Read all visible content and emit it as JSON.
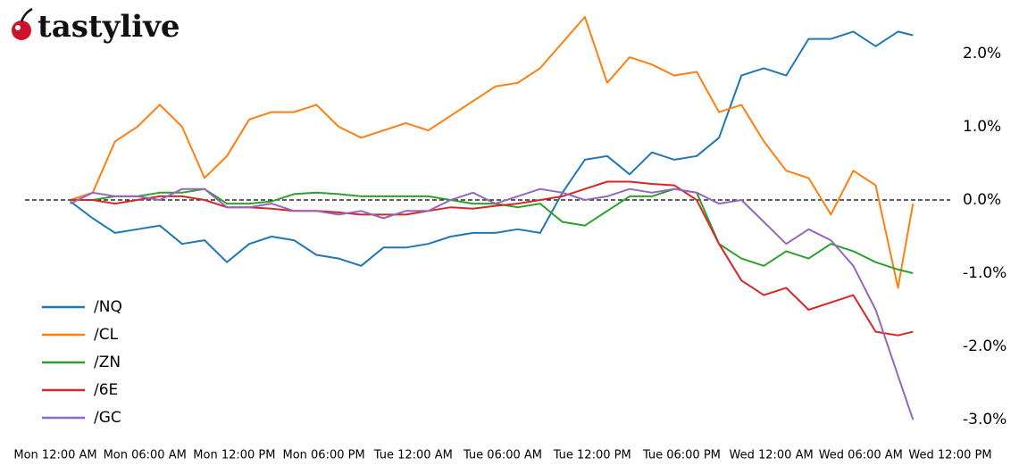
{
  "chart_data": {
    "type": "line",
    "logo": "tastylive",
    "x": [
      1,
      2.5,
      4,
      5.5,
      7,
      8.5,
      10,
      11.5,
      13,
      14.5,
      16,
      17.5,
      19,
      20.5,
      22,
      23.5,
      25,
      26.5,
      28,
      29.5,
      31,
      32.5,
      34,
      35.5,
      37,
      38.5,
      40,
      41.5,
      43,
      44.5,
      46,
      47.5,
      49,
      50.5,
      52,
      53.5,
      55,
      56.5,
      57.5
    ],
    "xlim": [
      0,
      60
    ],
    "xticks": [
      {
        "value": 0,
        "label": "Mon 12:00 AM"
      },
      {
        "value": 6,
        "label": "Mon 06:00 AM"
      },
      {
        "value": 12,
        "label": "Mon 12:00 PM"
      },
      {
        "value": 18,
        "label": "Mon 06:00 PM"
      },
      {
        "value": 24,
        "label": "Tue 12:00 AM"
      },
      {
        "value": 30,
        "label": "Tue 06:00 AM"
      },
      {
        "value": 36,
        "label": "Tue 12:00 PM"
      },
      {
        "value": 42,
        "label": "Tue 06:00 PM"
      },
      {
        "value": 48,
        "label": "Wed 12:00 AM"
      },
      {
        "value": 54,
        "label": "Wed 06:00 AM"
      },
      {
        "value": 60,
        "label": "Wed 12:00 PM"
      }
    ],
    "ylim": [
      -3.1,
      2.7
    ],
    "yticks": [
      {
        "value": 2,
        "label": "2.0%"
      },
      {
        "value": 1,
        "label": "1.0%"
      },
      {
        "value": 0,
        "label": "0.0%"
      },
      {
        "value": -1,
        "label": "-1.0%"
      },
      {
        "value": -2,
        "label": "-2.0%"
      },
      {
        "value": -3,
        "label": "-3.0%"
      }
    ],
    "zero_line": true,
    "legend": "left",
    "series": [
      {
        "name": "/NQ",
        "color": "#1f77b4",
        "values": [
          -0.02,
          -0.25,
          -0.45,
          -0.4,
          -0.35,
          -0.6,
          -0.55,
          -0.85,
          -0.6,
          -0.5,
          -0.55,
          -0.75,
          -0.8,
          -0.9,
          -0.65,
          -0.65,
          -0.6,
          -0.5,
          -0.45,
          -0.45,
          -0.4,
          -0.45,
          0.1,
          0.55,
          0.6,
          0.35,
          0.65,
          0.55,
          0.6,
          0.85,
          1.7,
          1.8,
          1.7,
          2.2,
          2.2,
          2.3,
          2.1,
          2.3,
          2.25
        ]
      },
      {
        "name": "/CL",
        "color": "#ff7f0e",
        "values": [
          0,
          0.1,
          0.8,
          1,
          1.3,
          1,
          0.3,
          0.6,
          1.1,
          1.2,
          1.2,
          1.3,
          1,
          0.85,
          0.95,
          1.05,
          0.95,
          1.15,
          1.35,
          1.55,
          1.6,
          1.8,
          2.15,
          2.5,
          1.6,
          1.95,
          1.85,
          1.7,
          1.75,
          1.2,
          1.3,
          0.8,
          0.4,
          0.3,
          -0.2,
          0.4,
          0.2,
          -1.2,
          -0.05
        ]
      },
      {
        "name": "/ZN",
        "color": "#2ca02c",
        "values": [
          0,
          0,
          0.05,
          0.05,
          0.1,
          0.1,
          0.15,
          -0.05,
          -0.05,
          -0.02,
          0.08,
          0.1,
          0.08,
          0.05,
          0.05,
          0.05,
          0.05,
          0,
          -0.05,
          -0.05,
          -0.1,
          -0.05,
          -0.3,
          -0.35,
          -0.15,
          0.05,
          0.05,
          0.15,
          0.1,
          -0.6,
          -0.8,
          -0.9,
          -0.7,
          -0.8,
          -0.6,
          -0.7,
          -0.85,
          -0.95,
          -1
        ]
      },
      {
        "name": "/6E",
        "color": "#d62728",
        "values": [
          0,
          0,
          -0.05,
          0,
          0.05,
          0.05,
          0,
          -0.1,
          -0.1,
          -0.12,
          -0.15,
          -0.15,
          -0.17,
          -0.2,
          -0.2,
          -0.2,
          -0.15,
          -0.1,
          -0.12,
          -0.08,
          -0.05,
          0,
          0.05,
          0.15,
          0.25,
          0.25,
          0.22,
          0.2,
          0,
          -0.6,
          -1.1,
          -1.3,
          -1.2,
          -1.5,
          -1.4,
          -1.3,
          -1.8,
          -1.85,
          -1.8
        ]
      },
      {
        "name": "/GC",
        "color": "#9467bd",
        "values": [
          -0.05,
          0.1,
          0.05,
          0.05,
          0,
          0.15,
          0.15,
          -0.1,
          -0.1,
          -0.05,
          -0.15,
          -0.15,
          -0.2,
          -0.15,
          -0.25,
          -0.15,
          -0.15,
          0,
          0.1,
          -0.05,
          0.05,
          0.15,
          0.1,
          0,
          0.05,
          0.15,
          0.1,
          0.15,
          0.1,
          -0.05,
          0,
          -0.3,
          -0.6,
          -0.4,
          -0.55,
          -0.9,
          -1.5,
          -2.4,
          -3
        ]
      }
    ]
  }
}
